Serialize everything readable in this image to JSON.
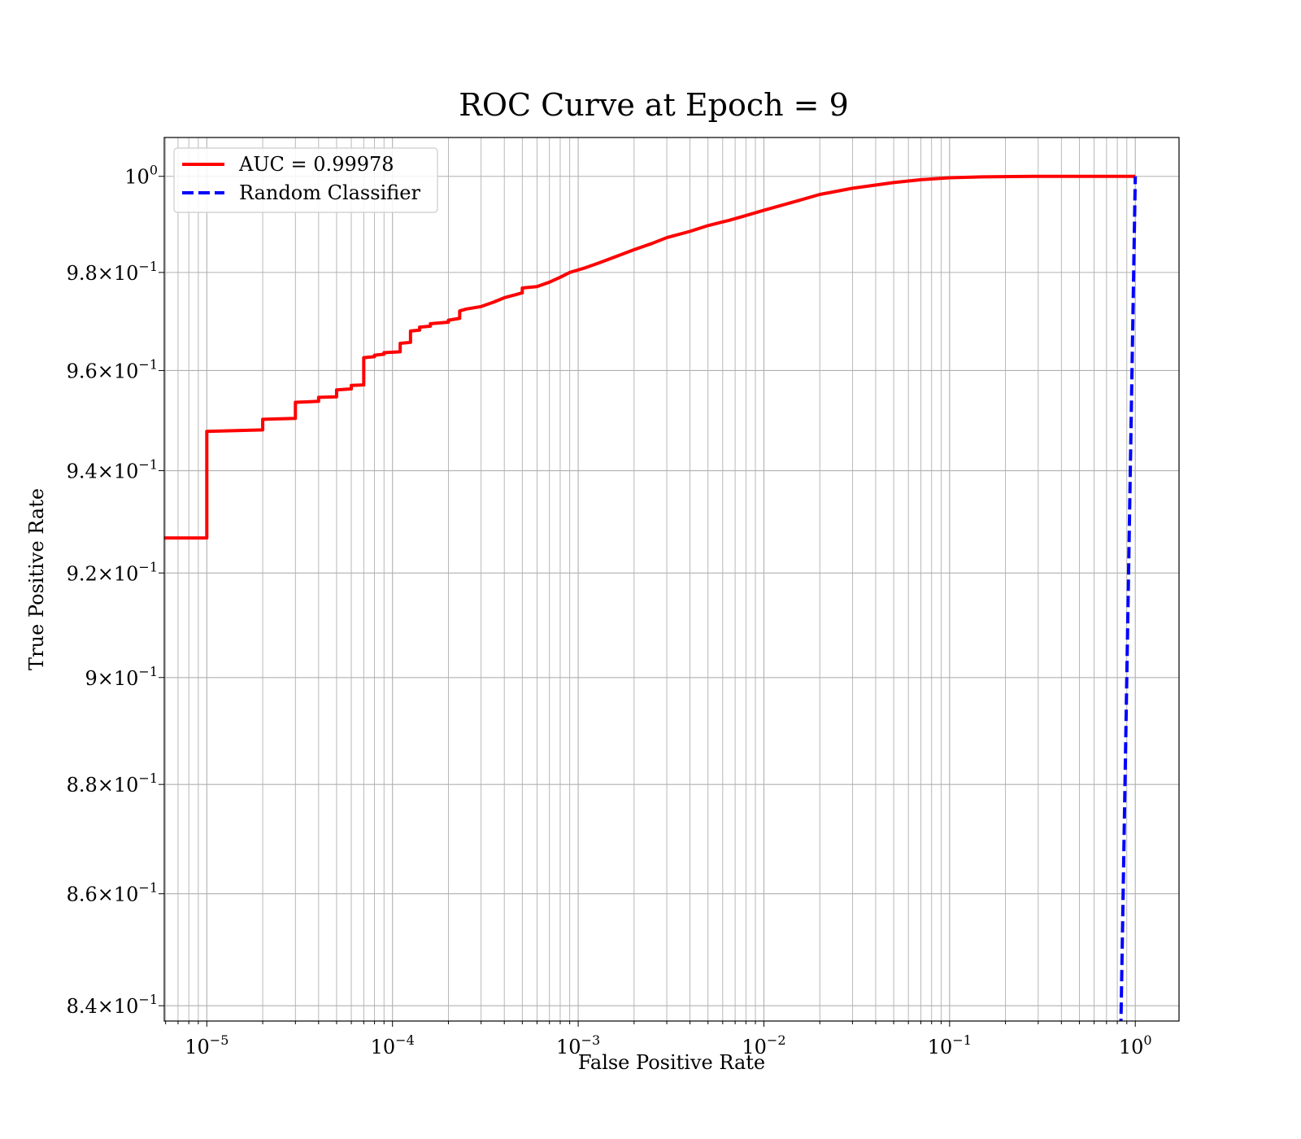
{
  "chart_data": {
    "type": "line",
    "title": "ROC Curve at Epoch = 9",
    "xlabel": "False Positive Rate",
    "ylabel": "True Positive Rate",
    "xscale": "log",
    "yscale": "log",
    "xlim": [
      5.9e-06,
      1.72
    ],
    "ylim": [
      0.8373,
      1.0082
    ],
    "grid": "major and minor",
    "legend_position": "top-left",
    "x_ticks": [
      {
        "value": 1e-05,
        "mantissa": "10",
        "exp": "−5"
      },
      {
        "value": 0.0001,
        "mantissa": "10",
        "exp": "−4"
      },
      {
        "value": 0.001,
        "mantissa": "10",
        "exp": "−3"
      },
      {
        "value": 0.01,
        "mantissa": "10",
        "exp": "−2"
      },
      {
        "value": 0.1,
        "mantissa": "10",
        "exp": "−1"
      },
      {
        "value": 1,
        "mantissa": "10",
        "exp": "0"
      }
    ],
    "y_ticks": [
      {
        "value": 1.0,
        "mantissa": "10",
        "exp": "0"
      },
      {
        "value": 0.98,
        "mantissa": "9.8×10",
        "exp": "−1"
      },
      {
        "value": 0.96,
        "mantissa": "9.6×10",
        "exp": "−1"
      },
      {
        "value": 0.94,
        "mantissa": "9.4×10",
        "exp": "−1"
      },
      {
        "value": 0.92,
        "mantissa": "9.2×10",
        "exp": "−1"
      },
      {
        "value": 0.9,
        "mantissa": "9×10",
        "exp": "−1"
      },
      {
        "value": 0.88,
        "mantissa": "8.8×10",
        "exp": "−1"
      },
      {
        "value": 0.86,
        "mantissa": "8.6×10",
        "exp": "−1"
      },
      {
        "value": 0.84,
        "mantissa": "8.4×10",
        "exp": "−1"
      }
    ],
    "series": [
      {
        "name": "AUC = 0.99978",
        "color": "#ff0000",
        "style": "solid",
        "points": [
          [
            5.9e-06,
            0.9268
          ],
          [
            1e-05,
            0.9268
          ],
          [
            1e-05,
            0.9478
          ],
          [
            2e-05,
            0.9481
          ],
          [
            2e-05,
            0.9502
          ],
          [
            3e-05,
            0.9504
          ],
          [
            3e-05,
            0.9536
          ],
          [
            4e-05,
            0.9538
          ],
          [
            4e-05,
            0.9546
          ],
          [
            5e-05,
            0.9547
          ],
          [
            5e-05,
            0.9561
          ],
          [
            6e-05,
            0.9563
          ],
          [
            6e-05,
            0.957
          ],
          [
            7e-05,
            0.9571
          ],
          [
            7e-05,
            0.9626
          ],
          [
            8e-05,
            0.9628
          ],
          [
            8e-05,
            0.9631
          ],
          [
            9e-05,
            0.9633
          ],
          [
            9e-05,
            0.9636
          ],
          [
            0.00011,
            0.9638
          ],
          [
            0.00011,
            0.9655
          ],
          [
            0.000125,
            0.9657
          ],
          [
            0.000125,
            0.968
          ],
          [
            0.00014,
            0.9682
          ],
          [
            0.00014,
            0.9688
          ],
          [
            0.00016,
            0.969
          ],
          [
            0.00016,
            0.9695
          ],
          [
            0.0002,
            0.9698
          ],
          [
            0.0002,
            0.9702
          ],
          [
            0.00023,
            0.9706
          ],
          [
            0.00023,
            0.9721
          ],
          [
            0.00025,
            0.9725
          ],
          [
            0.0003,
            0.973
          ],
          [
            0.00035,
            0.9739
          ],
          [
            0.0004,
            0.9748
          ],
          [
            0.0005,
            0.9758
          ],
          [
            0.0005,
            0.9768
          ],
          [
            0.0006,
            0.9771
          ],
          [
            0.0007,
            0.978
          ],
          [
            0.0008,
            0.979
          ],
          [
            0.0009,
            0.98
          ],
          [
            0.0011,
            0.981
          ],
          [
            0.0013,
            0.982
          ],
          [
            0.0016,
            0.9833
          ],
          [
            0.002,
            0.9847
          ],
          [
            0.0025,
            0.986
          ],
          [
            0.003,
            0.9872
          ],
          [
            0.004,
            0.9885
          ],
          [
            0.005,
            0.9897
          ],
          [
            0.0065,
            0.9908
          ],
          [
            0.008,
            0.9918
          ],
          [
            0.01,
            0.9929
          ],
          [
            0.015,
            0.9948
          ],
          [
            0.02,
            0.9962
          ],
          [
            0.03,
            0.9975
          ],
          [
            0.05,
            0.9987
          ],
          [
            0.07,
            0.9993
          ],
          [
            0.1,
            0.9997
          ],
          [
            0.15,
            0.9999
          ],
          [
            0.3,
            1.0
          ],
          [
            1.0,
            1.0
          ]
        ]
      },
      {
        "name": "Random Classifier",
        "color": "#0000ff",
        "style": "dashed",
        "points": [
          [
            0.83,
            0.83
          ],
          [
            0.86,
            0.86
          ],
          [
            0.9,
            0.9
          ],
          [
            0.94,
            0.94
          ],
          [
            0.97,
            0.97
          ],
          [
            1.0,
            1.0
          ]
        ]
      }
    ]
  }
}
